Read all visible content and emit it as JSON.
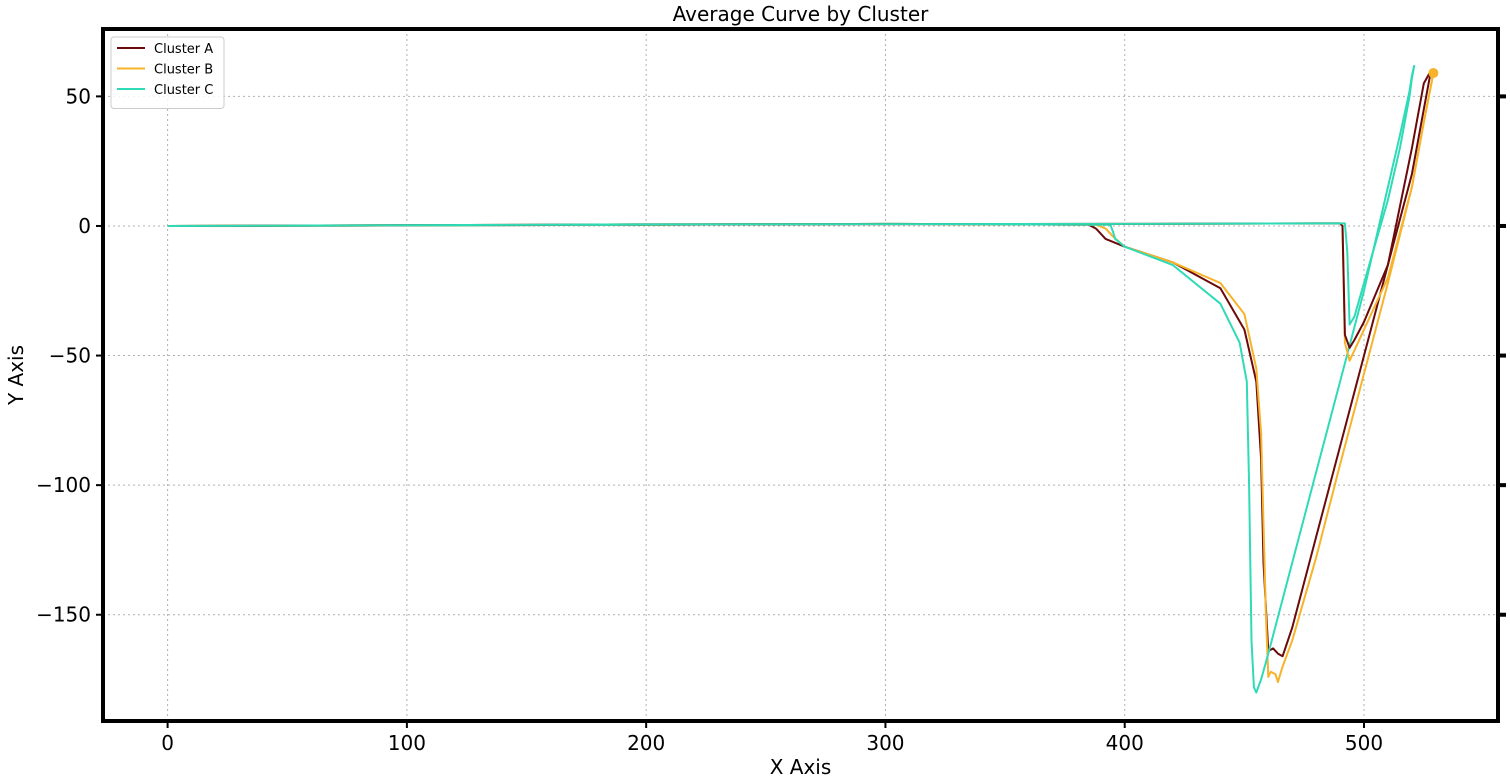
{
  "chart_data": {
    "type": "line",
    "title": "Average Curve by Cluster",
    "xlabel": "X Axis",
    "ylabel": "Y Axis",
    "xlim": [
      -27,
      556
    ],
    "ylim": [
      -191,
      76
    ],
    "xticks": [
      0,
      100,
      200,
      300,
      400,
      500
    ],
    "yticks": [
      50,
      0,
      -50,
      -100,
      -150
    ],
    "xtick_labels": [
      "0",
      "100",
      "200",
      "300",
      "400",
      "500"
    ],
    "ytick_labels": [
      "50",
      "0",
      "−50",
      "−100",
      "−150"
    ],
    "grid": true,
    "legend_position": "upper-left",
    "series": [
      {
        "name": "Cluster A",
        "color": "#6b0a0a",
        "x": [
          0,
          100,
          200,
          300,
          385,
          388,
          392,
          400,
          420,
          440,
          450,
          455,
          457,
          458,
          460,
          462,
          464,
          466,
          470,
          480,
          490,
          500,
          510,
          520,
          525,
          528
        ],
        "y": [
          0,
          0.2,
          0.5,
          0.8,
          0.5,
          -1,
          -5,
          -8,
          -14,
          -24,
          -40,
          -60,
          -90,
          -130,
          -164,
          -163,
          -165,
          -166,
          -155,
          -120,
          -85,
          -50,
          -15,
          30,
          55,
          60
        ]
      },
      {
        "name": "Cluster B",
        "color": "#f7b32b",
        "x": [
          0,
          100,
          200,
          300,
          388,
          392,
          395,
          400,
          420,
          440,
          450,
          455,
          457,
          459,
          460,
          461,
          463,
          464,
          466,
          470,
          480,
          490,
          500,
          510,
          520,
          525,
          529
        ],
        "y": [
          0,
          0.2,
          0.5,
          0.8,
          0.5,
          -1,
          -4,
          -8,
          -14,
          -22,
          -34,
          -55,
          -80,
          -150,
          -174,
          -172,
          -173,
          -176,
          -170,
          -160,
          -128,
          -92,
          -57,
          -22,
          15,
          40,
          59
        ]
      },
      {
        "name": "Cluster C",
        "color": "#2edbb6",
        "x": [
          0,
          100,
          200,
          300,
          394,
          395,
          396,
          400,
          420,
          440,
          448,
          451,
          452,
          453,
          454,
          455,
          457,
          460,
          470,
          480,
          490,
          500,
          510,
          515,
          519,
          520,
          521
        ],
        "y": [
          0,
          0.2,
          0.5,
          0.8,
          0.5,
          -2,
          -5,
          -8,
          -15,
          -30,
          -45,
          -60,
          -100,
          -160,
          -178,
          -180,
          -175,
          -165,
          -130,
          -95,
          -60,
          -25,
          15,
          35,
          52,
          58,
          62
        ]
      },
      {
        "name": "",
        "color": "#f7b32b",
        "x": [
          0,
          200,
          400,
          480,
          490,
          491,
          492,
          494,
          496,
          500,
          510,
          520,
          525,
          529
        ],
        "y": [
          0,
          0.6,
          0.8,
          1,
          1,
          0,
          -45,
          -52,
          -48,
          -40,
          -20,
          15,
          40,
          59
        ]
      },
      {
        "name": "",
        "color": "#6b0a0a",
        "x": [
          0,
          200,
          400,
          480,
          490,
          491,
          492,
          494,
          496,
          500,
          510,
          520,
          525,
          528
        ],
        "y": [
          0,
          0.6,
          0.8,
          1,
          1,
          0,
          -42,
          -47,
          -44,
          -37,
          -15,
          20,
          45,
          60
        ]
      },
      {
        "name": "",
        "color": "#2edbb6",
        "x": [
          0,
          200,
          400,
          480,
          492,
          493,
          494,
          496,
          500,
          510,
          515,
          519,
          520,
          521
        ],
        "y": [
          0,
          0.6,
          0.8,
          1,
          1,
          -10,
          -38,
          -35,
          -22,
          10,
          30,
          50,
          57,
          62
        ]
      }
    ]
  }
}
